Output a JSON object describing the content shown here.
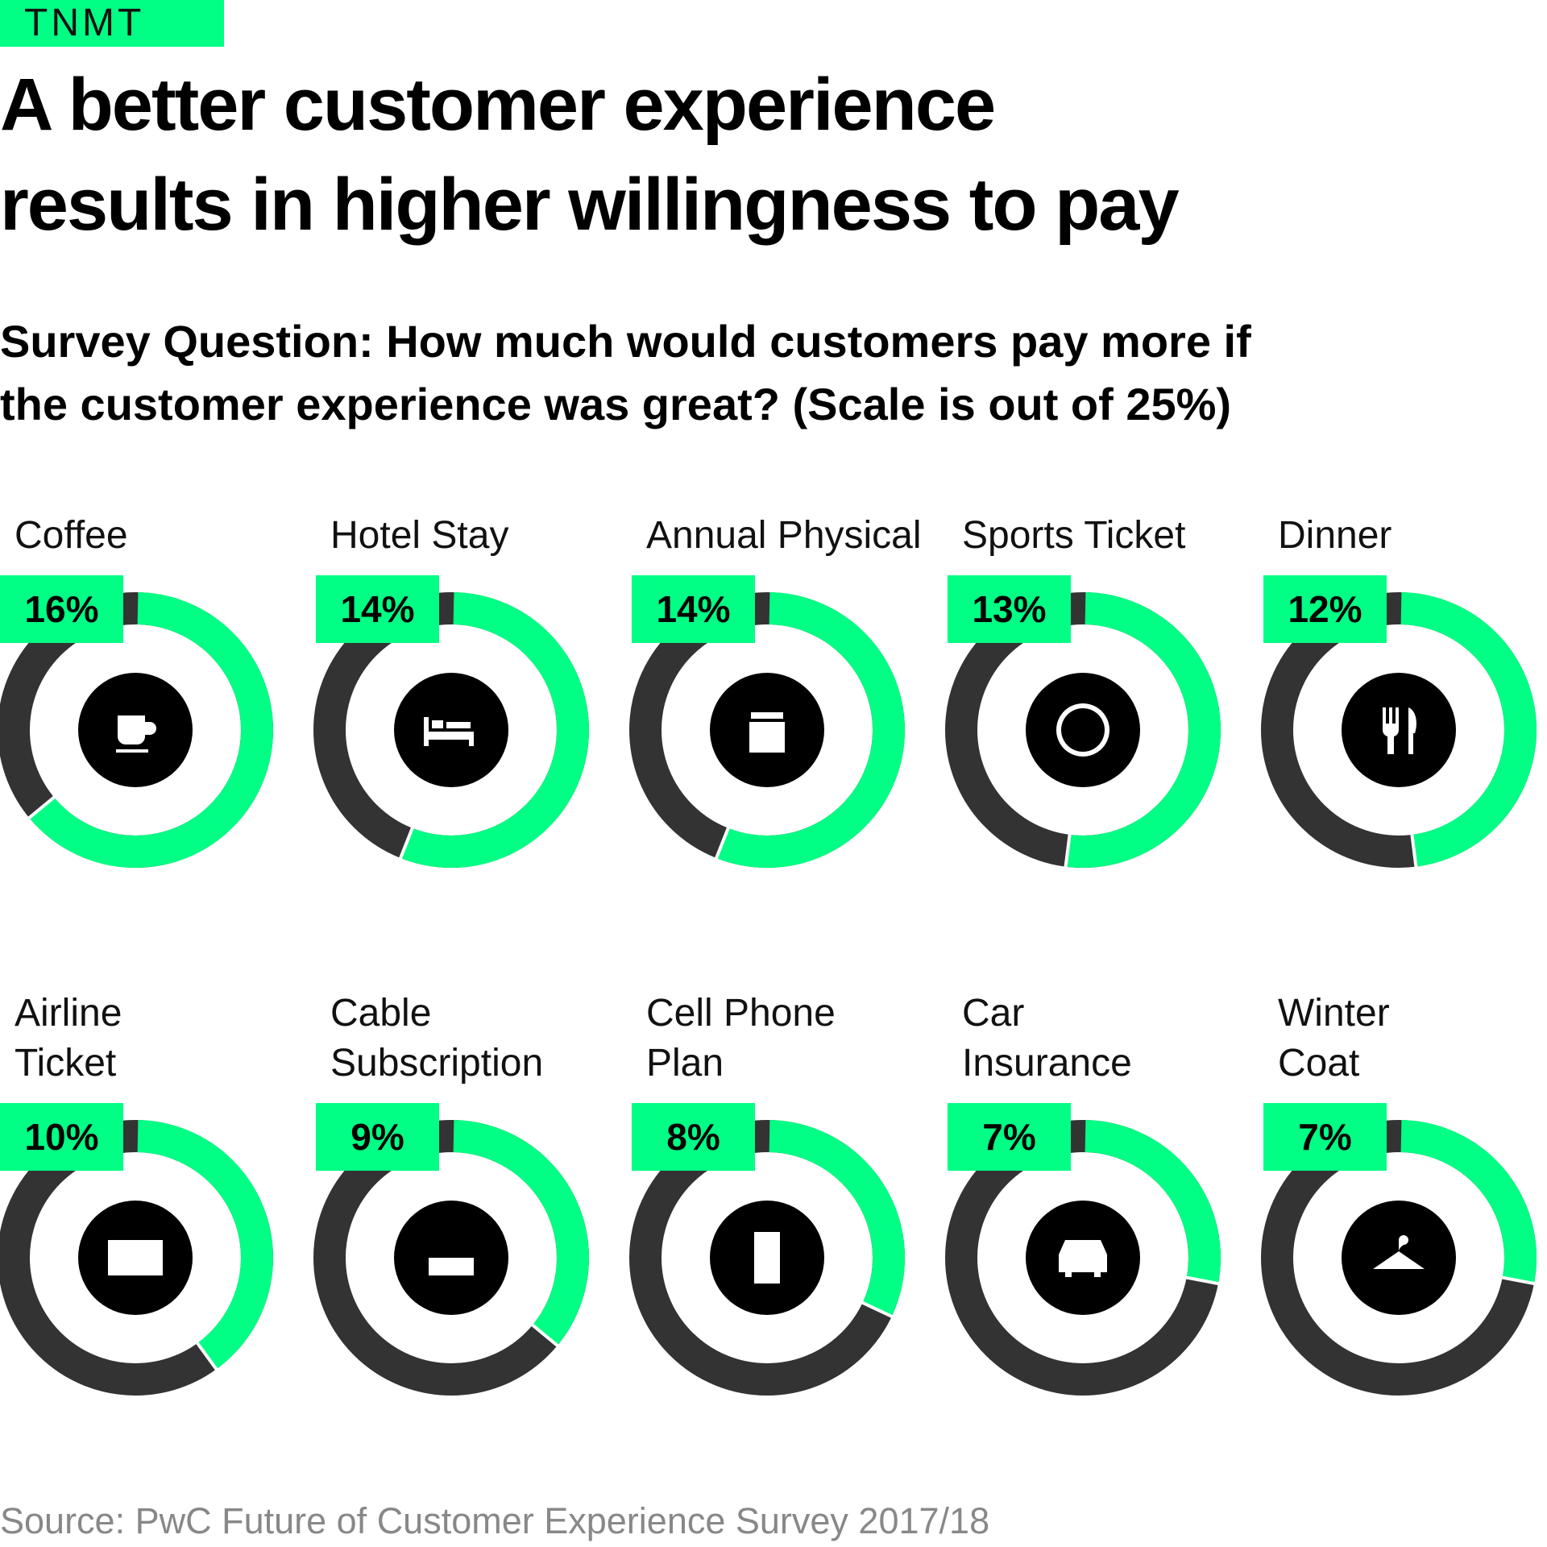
{
  "brand": "TNMT",
  "chart_data": {
    "type": "donut",
    "title": "A better customer experience\nresults in higher willingness to pay",
    "subtitle": "Survey Question: How much would customers pay more if\nthe customer experience was great? (Scale is out of 25%)",
    "categories": [
      "Coffee",
      "Hotel Stay",
      "Annual Physical",
      "Sports Ticket",
      "Dinner",
      "Airline\nTicket",
      "Cable\nSubscription",
      "Cell Phone\nPlan",
      "Car\nInsurance",
      "Winter\nCoat"
    ],
    "values": [
      16,
      14,
      14,
      13,
      12,
      10,
      9,
      8,
      7,
      7
    ],
    "value_labels": [
      "16%",
      "14%",
      "14%",
      "13%",
      "12%",
      "10%",
      "9%",
      "8%",
      "7%",
      "7%"
    ],
    "ylim": [
      0,
      25
    ],
    "color": "#00ff84",
    "remainder_color": "#333333",
    "source": "Source: PwC Future of Customer Experience Survey 2017/18"
  }
}
